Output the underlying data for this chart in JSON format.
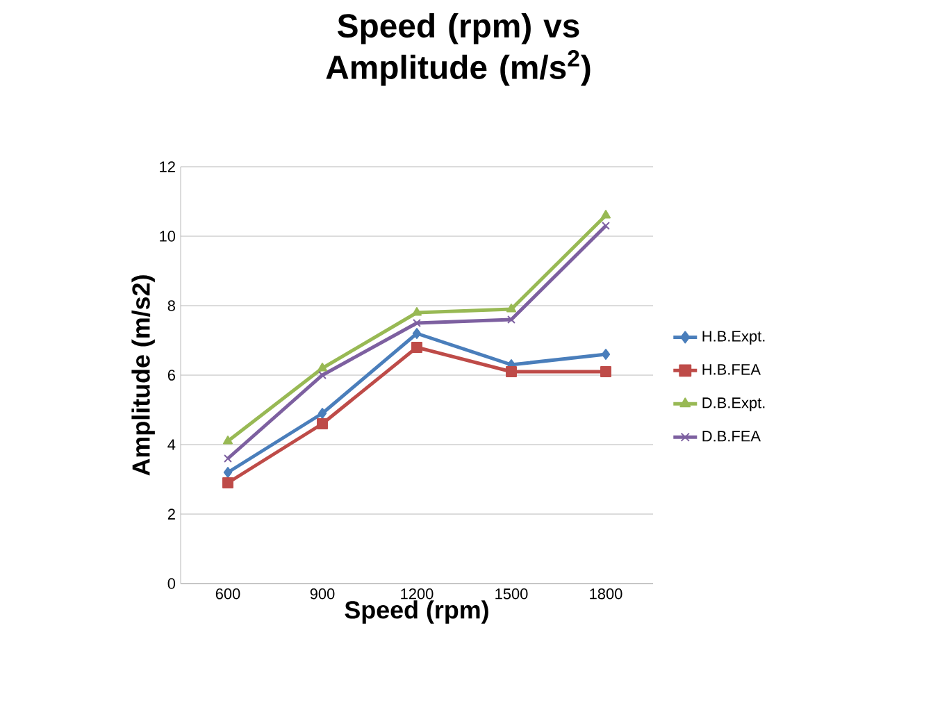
{
  "chart_data": {
    "type": "line",
    "title": "Speed (rpm) vs Amplitude (m/s$^{2}$)",
    "xlabel": "Speed (rpm)",
    "ylabel": "Amplitude  (m/s2)",
    "categories": [
      "600",
      "900",
      "1200",
      "1500",
      "1800"
    ],
    "series": [
      {
        "name": "H.B.Expt.",
        "color": "#4a7ebb",
        "marker": "diamond",
        "values": [
          3.2,
          4.9,
          7.2,
          6.3,
          6.6
        ]
      },
      {
        "name": "H.B.FEA",
        "color": "#be4b48",
        "marker": "square",
        "values": [
          2.9,
          4.6,
          6.8,
          6.1,
          6.1
        ]
      },
      {
        "name": "D.B.Expt.",
        "color": "#98b954",
        "marker": "triangle",
        "values": [
          4.1,
          6.2,
          7.8,
          7.9,
          10.6
        ]
      },
      {
        "name": "D.B.FEA",
        "color": "#7d60a0",
        "marker": "cross",
        "values": [
          3.6,
          6.0,
          7.5,
          7.6,
          10.3
        ]
      }
    ],
    "ylim": [
      0,
      12
    ],
    "yticks": [
      0,
      2,
      4,
      6,
      8,
      10,
      12
    ],
    "grid": "y",
    "legend": "right"
  }
}
